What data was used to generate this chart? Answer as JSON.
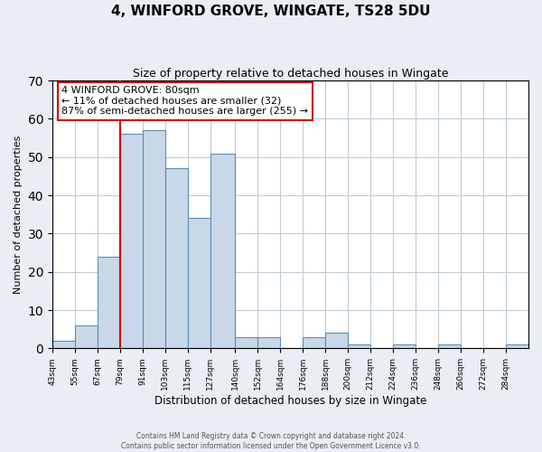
{
  "title": "4, WINFORD GROVE, WINGATE, TS28 5DU",
  "subtitle": "Size of property relative to detached houses in Wingate",
  "xlabel": "Distribution of detached houses by size in Wingate",
  "ylabel": "Number of detached properties",
  "bin_edges": [
    43,
    55,
    67,
    79,
    91,
    103,
    115,
    127,
    140,
    152,
    164,
    176,
    188,
    200,
    212,
    224,
    236,
    248,
    260,
    272,
    284,
    296
  ],
  "bin_labels": [
    "43sqm",
    "55sqm",
    "67sqm",
    "79sqm",
    "91sqm",
    "103sqm",
    "115sqm",
    "127sqm",
    "140sqm",
    "152sqm",
    "164sqm",
    "176sqm",
    "188sqm",
    "200sqm",
    "212sqm",
    "224sqm",
    "236sqm",
    "248sqm",
    "260sqm",
    "272sqm",
    "284sqm"
  ],
  "counts": [
    2,
    6,
    24,
    56,
    57,
    47,
    34,
    51,
    3,
    3,
    0,
    3,
    4,
    1,
    0,
    1,
    0,
    1,
    0,
    0,
    1
  ],
  "bar_color": "#c8d8e8",
  "bar_edge_color": "#5b8db8",
  "property_line_x": 79,
  "ylim": [
    0,
    70
  ],
  "yticks": [
    0,
    10,
    20,
    30,
    40,
    50,
    60,
    70
  ],
  "annotation_text": "4 WINFORD GROVE: 80sqm\n← 11% of detached houses are smaller (32)\n87% of semi-detached houses are larger (255) →",
  "annotation_box_color": "#ffffff",
  "annotation_box_edge_color": "#cc0000",
  "footer_line1": "Contains HM Land Registry data © Crown copyright and database right 2024.",
  "footer_line2": "Contains public sector information licensed under the Open Government Licence v3.0.",
  "background_color": "#e8eef4",
  "plot_background_color": "#ffffff",
  "grid_color": "#c0ccd8",
  "property_line_color": "#cc0000",
  "title_fontsize": 11,
  "subtitle_fontsize": 9,
  "ylabel_fontsize": 8,
  "xlabel_fontsize": 8.5,
  "tick_fontsize": 6.5,
  "footer_fontsize": 5.5,
  "annotation_fontsize": 8
}
